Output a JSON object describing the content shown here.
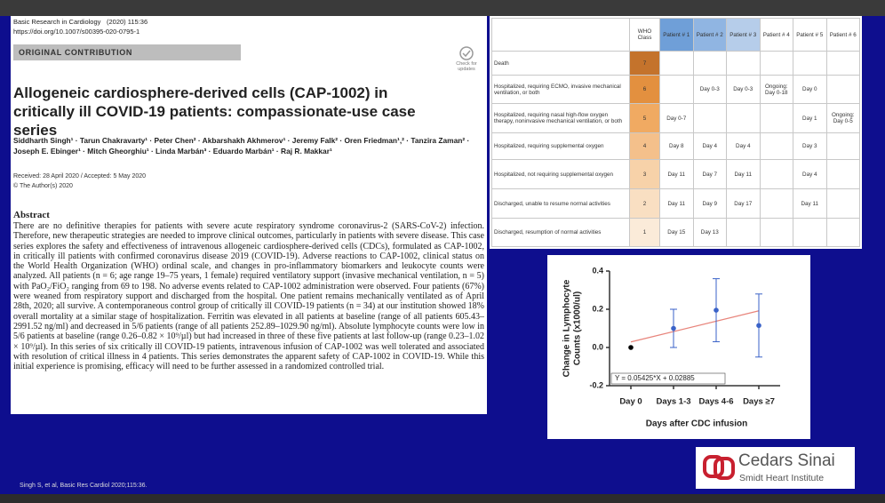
{
  "paper": {
    "journal": "Basic Research in Cardiology",
    "issue": "(2020) 115:36",
    "doi": "https://doi.org/10.1007/s00395-020-0795-1",
    "section": "ORIGINAL CONTRIBUTION",
    "check_updates": "Check for updates",
    "title": "Allogeneic cardiosphere-derived cells (CAP-1002) in critically ill COVID-19 patients: compassionate-use case series",
    "authors": "Siddharth Singh¹ · Tarun Chakravarty¹ · Peter Chen² · Akbarshakh Akhmerov¹ · Jeremy Falk² · Oren Friedman¹,² · Tanzira Zaman² · Joseph E. Ebinger¹ · Mitch Gheorghiu¹ · Linda Marbán³ · Eduardo Marbán¹ · Raj R. Makkar¹",
    "received": "Received: 28 April 2020 / Accepted: 5 May 2020",
    "copyright": "© The Author(s) 2020",
    "abstract_heading": "Abstract",
    "abstract": "There are no definitive therapies for patients with severe acute respiratory syndrome coronavirus-2 (SARS-CoV-2) infection. Therefore, new therapeutic strategies are needed to improve clinical outcomes, particularly in patients with severe disease. This case series explores the safety and effectiveness of intravenous allogeneic cardiosphere-derived cells (CDCs), formulated as CAP-1002, in critically ill patients with confirmed coronavirus disease 2019 (COVID-19). Adverse reactions to CAP-1002, clinical status on the World Health Organization (WHO) ordinal scale, and changes in pro-inflammatory biomarkers and leukocyte counts were analyzed. All patients (n = 6; age range 19–75 years, 1 female) required ventilatory support (invasive mechanical ventilation, n = 5) with PaO₂/FiO₂ ranging from 69 to 198. No adverse events related to CAP-1002 administration were observed. Four patients (67%) were weaned from respiratory support and discharged from the hospital. One patient remains mechanically ventilated as of April 28th, 2020; all survive. A contemporaneous control group of critically ill COVID-19 patients (n = 34) at our institution showed 18% overall mortality at a similar stage of hospitalization. Ferritin was elevated in all patients at baseline (range of all patients 605.43–2991.52 ng/ml) and decreased in 5/6 patients (range of all patients 252.89–1029.90 ng/ml). Absolute lymphocyte counts were low in 5/6 patients at baseline (range 0.26–0.82 × 10⁹/µl) but had increased in three of these five patients at last follow-up (range 0.23–1.02 × 10⁹/µl). In this series of six critically ill COVID-19 patients, intravenous infusion of CAP-1002 was well tolerated and associated with resolution of critical illness in 4 patients. This series demonstrates the apparent safety of CAP-1002 in COVID-19. While this initial experience is promising, efficacy will need to be further assessed in a randomized controlled trial."
  },
  "table": {
    "header": [
      null,
      "WHO Class",
      "Patient # 1",
      "Patient # 2",
      "Patient # 3",
      "Patient # 4",
      "Patient # 5",
      "Patient # 6"
    ],
    "rows": [
      [
        "Death",
        7,
        null,
        null,
        null,
        null,
        null,
        null
      ],
      [
        "Hospitalized, requiring ECMO, invasive mechanical ventilation, or both",
        6,
        null,
        "Day 0-3",
        "Day 0-3",
        "Ongoing: Day 0-18",
        "Day 0",
        null
      ],
      [
        "Hospitalized, requiring nasal high-flow oxygen therapy, noninvasive mechanical ventilation, or both",
        5,
        "Day 0-7",
        null,
        null,
        null,
        "Day 1",
        "Ongoing: Day 0-5"
      ],
      [
        "Hospitalized, requiring supplemental oxygen",
        4,
        "Day 8",
        "Day 4",
        "Day 4",
        null,
        "Day 3",
        null
      ],
      [
        "Hospitalized, not requiring supplemental oxygen",
        3,
        "Day 11",
        "Day 7",
        "Day 11",
        null,
        "Day 4",
        null
      ],
      [
        "Discharged, unable to resume normal activities",
        2,
        "Day 11",
        "Day 9",
        "Day 17",
        null,
        "Day 11",
        null
      ],
      [
        "Discharged, resumption of normal activities",
        1,
        "Day 15",
        "Day 13",
        null,
        null,
        null,
        null
      ]
    ]
  },
  "chart_data": {
    "type": "errorbar",
    "ylabel": [
      "Change in Lymphocyte",
      "Counts (x1000/ul)"
    ],
    "xlabel": "Days after CDC infusion",
    "categories": [
      "Day 0",
      "Days 1-3",
      "Days 4-6",
      "Days ≥7"
    ],
    "values": [
      0,
      0.1,
      0.195,
      0.115
    ],
    "errors": [
      null,
      0.1,
      0.165,
      0.165
    ],
    "colors": [
      "#000000",
      "#3a62c8",
      "#3a62c8",
      "#3a62c8"
    ],
    "trendline": {
      "label": "Y = 0.05425*X + 0.02885",
      "values": [
        0.029,
        0.192
      ],
      "color": "#e8857c"
    },
    "ylim": [
      -0.2,
      0.4
    ],
    "yticks": [
      -0.2,
      {
        "value": 0,
        "label": "0.0"
      },
      0.2,
      0.4
    ]
  },
  "footer": {
    "citation": "Singh S, et al, Basic Res Cardiol 2020;115:36.",
    "logo_name": "Cedars Sinai",
    "logo_subtitle": "Smidt Heart Institute"
  }
}
